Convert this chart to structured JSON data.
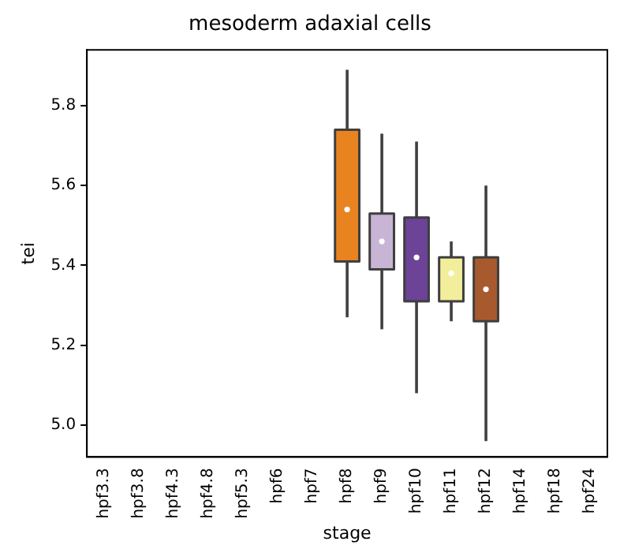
{
  "chart_data": {
    "type": "box",
    "title": "mesoderm adaxial cells",
    "xlabel": "stage",
    "ylabel": "tei",
    "categories": [
      "hpf3.3",
      "hpf3.8",
      "hpf4.3",
      "hpf4.8",
      "hpf5.3",
      "hpf6",
      "hpf7",
      "hpf8",
      "hpf9",
      "hpf10",
      "hpf11",
      "hpf12",
      "hpf14",
      "hpf18",
      "hpf24"
    ],
    "colors": [
      null,
      null,
      null,
      null,
      null,
      null,
      null,
      "#e8831f",
      "#c8b4d4",
      "#6c4396",
      "#f2ee9c",
      "#a85a2e",
      null,
      null,
      null
    ],
    "boxes": [
      null,
      null,
      null,
      null,
      null,
      null,
      null,
      {
        "low": 5.27,
        "q1": 5.41,
        "median": 5.54,
        "q3": 5.74,
        "high": 5.89
      },
      {
        "low": 5.24,
        "q1": 5.39,
        "median": 5.46,
        "q3": 5.53,
        "high": 5.73
      },
      {
        "low": 5.08,
        "q1": 5.31,
        "median": 5.42,
        "q3": 5.52,
        "high": 5.71
      },
      {
        "low": 5.26,
        "q1": 5.31,
        "median": 5.38,
        "q3": 5.42,
        "high": 5.46
      },
      {
        "low": 4.96,
        "q1": 5.26,
        "median": 5.34,
        "q3": 5.42,
        "high": 5.6
      },
      null,
      null,
      null
    ],
    "ylim": [
      4.92,
      5.94
    ],
    "yticks": [
      {
        "value": 5,
        "label": "5.0"
      },
      {
        "value": 5.2,
        "label": "5.2"
      },
      {
        "value": 5.4,
        "label": "5.4"
      },
      {
        "value": 5.6,
        "label": "5.6"
      },
      {
        "value": 5.8,
        "label": "5.8"
      }
    ],
    "grid": false,
    "legend": false
  }
}
